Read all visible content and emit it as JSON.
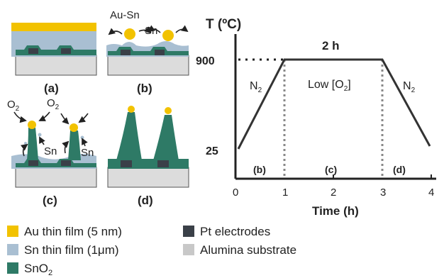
{
  "panels": {
    "a": {
      "label": "(a)"
    },
    "b": {
      "label": "(b)",
      "annotation_left": "Au-Sn",
      "annotation_right": "Sn"
    },
    "c": {
      "label": "(c)",
      "o2_left": "O",
      "o2_left_sub": "2",
      "o2_right": "O",
      "o2_right_sub": "2",
      "sn_left": "Sn",
      "sn_right": "Sn"
    },
    "d": {
      "label": "(d)"
    }
  },
  "plot": {
    "ylabel": "T (ºC)",
    "xlabel": "Time (h)",
    "y_ticks": [
      "900",
      "25"
    ],
    "x_ticks": [
      "0",
      "1",
      "2",
      "3",
      "4"
    ],
    "hold_label": "2 h",
    "left_gas": "N",
    "left_gas_sub": "2",
    "middle_gas_pre": "Low [O",
    "middle_gas_sub": "2",
    "middle_gas_post": "]",
    "right_gas": "N",
    "right_gas_sub": "2",
    "region_labels": [
      "(b)",
      "(c)",
      "(d)"
    ]
  },
  "legend": [
    {
      "text": "Au thin film (5 nm)",
      "color": "#f2c200"
    },
    {
      "text": "Pt electrodes",
      "color": "#3a4048"
    },
    {
      "text": "Sn thin film (1μm)",
      "color": "#a9bfd2"
    },
    {
      "text": "Alumina substrate",
      "color": "#c8c8c8"
    },
    {
      "text": "SnO",
      "sub": "2",
      "color": "#2e7a66"
    }
  ],
  "colors": {
    "au": "#f2c200",
    "sn": "#a9bfd2",
    "sno2": "#2e7a66",
    "pt": "#3a4048",
    "alumina": "#dcdcdc"
  }
}
